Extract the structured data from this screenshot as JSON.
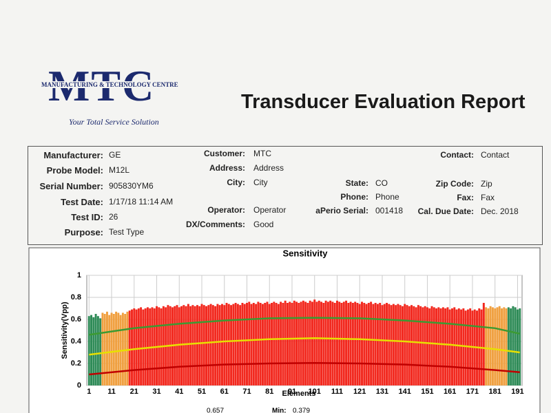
{
  "header": {
    "logo": "MTC",
    "logo_subtitle": "MANUFACTURING & TECHNOLOGY CENTRE",
    "tagline": "Your Total Service Solution",
    "title": "Transducer Evaluation Report"
  },
  "fields": {
    "col1": [
      {
        "label": "Manufacturer:",
        "value": "GE"
      },
      {
        "label": "Probe Model:",
        "value": "M12L"
      },
      {
        "label": "Serial Number:",
        "value": "905830YM6"
      },
      {
        "label": "Test Date:",
        "value": "1/17/18 11:14 AM"
      },
      {
        "label": "Test ID:",
        "value": "26"
      },
      {
        "label": "Purpose:",
        "value": "Test Type"
      }
    ],
    "col2": [
      {
        "label": "Customer:",
        "value": "MTC"
      },
      {
        "label": "Address:",
        "value": "Address"
      },
      {
        "label": "City:",
        "value": "City"
      },
      {
        "label": "Operator:",
        "value": "Operator"
      },
      {
        "label": "DX/Comments:",
        "value": "Good"
      }
    ],
    "col3": [
      {
        "label": "State:",
        "value": "CO"
      },
      {
        "label": "Phone:",
        "value": "Phone"
      },
      {
        "label": "aPerio Serial:",
        "value": "001418"
      }
    ],
    "col4": [
      {
        "label": "Contact:",
        "value": "Contact"
      },
      {
        "label": "Zip Code:",
        "value": "Zip"
      },
      {
        "label": "Fax:",
        "value": "Fax"
      },
      {
        "label": "Cal. Due Date:",
        "value": "Dec. 2018"
      }
    ]
  },
  "chart_data": {
    "type": "bar",
    "title": "Sensitivity",
    "xlabel": "Elements",
    "ylabel": "Sensitivity(Vpp)",
    "xlim": [
      0,
      193
    ],
    "xticks": [
      1,
      11,
      21,
      31,
      41,
      51,
      61,
      71,
      81,
      91,
      101,
      111,
      121,
      131,
      141,
      151,
      161,
      171,
      181,
      191
    ],
    "ylim": [
      0,
      1
    ],
    "yticks": [
      0,
      0.2,
      0.4,
      0.6,
      0.8,
      1
    ],
    "grid": true,
    "series": [
      {
        "color": "#2e8b57",
        "x": [
          1,
          2,
          3,
          4,
          5,
          6
        ],
        "values": [
          0.63,
          0.64,
          0.62,
          0.65,
          0.63,
          0.61
        ]
      },
      {
        "color": "#f0a040",
        "x": [
          7,
          8,
          9,
          10,
          11,
          12,
          13,
          14,
          15,
          16,
          17,
          18
        ],
        "values": [
          0.66,
          0.65,
          0.67,
          0.64,
          0.66,
          0.65,
          0.67,
          0.66,
          0.64,
          0.66,
          0.65,
          0.67
        ]
      },
      {
        "color": "#f2281e",
        "x": [
          19,
          20,
          21,
          22,
          23,
          24,
          25,
          26,
          27,
          28,
          29,
          30,
          31,
          32,
          33,
          34,
          35,
          36,
          37,
          38,
          39,
          40,
          41,
          42,
          43,
          44,
          45,
          46,
          47,
          48,
          49,
          50,
          51,
          52,
          53,
          54,
          55,
          56,
          57,
          58,
          59,
          60,
          61,
          62,
          63,
          64,
          65,
          66,
          67,
          68,
          69,
          70,
          71,
          72,
          73,
          74,
          75,
          76,
          77,
          78,
          79,
          80,
          81,
          82,
          83,
          84,
          85,
          86,
          87,
          88,
          89,
          90,
          91,
          92,
          93,
          94,
          95,
          96,
          97,
          98,
          99,
          100,
          101,
          102,
          103,
          104,
          105,
          106,
          107,
          108,
          109,
          110,
          111,
          112,
          113,
          114,
          115,
          116,
          117,
          118,
          119,
          120,
          121,
          122,
          123,
          124,
          125,
          126,
          127,
          128,
          129,
          130,
          131,
          132,
          133,
          134,
          135,
          136,
          137,
          138,
          139,
          140,
          141,
          142,
          143,
          144,
          145,
          146,
          147,
          148,
          149,
          150,
          151,
          152,
          153,
          154,
          155,
          156,
          157,
          158,
          159,
          160,
          161,
          162,
          163,
          164,
          165,
          166,
          167,
          168,
          169,
          170,
          171,
          172,
          173,
          174,
          175,
          176
        ],
        "values": [
          0.68,
          0.69,
          0.7,
          0.69,
          0.7,
          0.71,
          0.69,
          0.7,
          0.71,
          0.7,
          0.71,
          0.7,
          0.72,
          0.71,
          0.7,
          0.72,
          0.71,
          0.73,
          0.72,
          0.71,
          0.72,
          0.73,
          0.71,
          0.72,
          0.73,
          0.72,
          0.74,
          0.72,
          0.73,
          0.72,
          0.73,
          0.72,
          0.74,
          0.73,
          0.72,
          0.73,
          0.74,
          0.73,
          0.72,
          0.74,
          0.73,
          0.74,
          0.73,
          0.75,
          0.74,
          0.73,
          0.74,
          0.75,
          0.74,
          0.73,
          0.75,
          0.74,
          0.75,
          0.76,
          0.74,
          0.75,
          0.74,
          0.76,
          0.75,
          0.74,
          0.75,
          0.76,
          0.74,
          0.75,
          0.76,
          0.75,
          0.74,
          0.76,
          0.75,
          0.77,
          0.75,
          0.76,
          0.75,
          0.77,
          0.76,
          0.75,
          0.76,
          0.77,
          0.76,
          0.75,
          0.77,
          0.76,
          0.78,
          0.76,
          0.77,
          0.76,
          0.75,
          0.77,
          0.76,
          0.77,
          0.76,
          0.75,
          0.77,
          0.76,
          0.75,
          0.76,
          0.77,
          0.75,
          0.76,
          0.75,
          0.76,
          0.75,
          0.74,
          0.76,
          0.75,
          0.74,
          0.75,
          0.76,
          0.74,
          0.75,
          0.74,
          0.75,
          0.73,
          0.74,
          0.75,
          0.74,
          0.73,
          0.74,
          0.73,
          0.74,
          0.73,
          0.72,
          0.74,
          0.73,
          0.72,
          0.73,
          0.72,
          0.71,
          0.73,
          0.72,
          0.71,
          0.72,
          0.71,
          0.7,
          0.72,
          0.71,
          0.7,
          0.71,
          0.7,
          0.71,
          0.7,
          0.71,
          0.69,
          0.7,
          0.71,
          0.69,
          0.7,
          0.69,
          0.7,
          0.68,
          0.69,
          0.7,
          0.68,
          0.69,
          0.68,
          0.7,
          0.69,
          0.75
        ]
      },
      {
        "color": "#f0a040",
        "x": [
          177,
          178,
          179,
          180,
          181,
          182,
          183,
          184,
          185,
          186
        ],
        "values": [
          0.71,
          0.7,
          0.72,
          0.71,
          0.7,
          0.71,
          0.72,
          0.7,
          0.71,
          0.7
        ]
      },
      {
        "color": "#2e8b57",
        "x": [
          187,
          188,
          189,
          190,
          191,
          192
        ],
        "values": [
          0.71,
          0.7,
          0.72,
          0.71,
          0.69,
          0.7
        ]
      }
    ],
    "lines": [
      {
        "color": "#3c9a32",
        "x": [
          1,
          21,
          41,
          61,
          81,
          101,
          121,
          141,
          161,
          181,
          192
        ],
        "values": [
          0.46,
          0.52,
          0.56,
          0.59,
          0.61,
          0.615,
          0.61,
          0.59,
          0.56,
          0.52,
          0.47
        ]
      },
      {
        "color": "#e8e000",
        "x": [
          1,
          21,
          41,
          61,
          81,
          101,
          121,
          141,
          161,
          181,
          192
        ],
        "values": [
          0.28,
          0.33,
          0.37,
          0.4,
          0.42,
          0.43,
          0.42,
          0.4,
          0.37,
          0.33,
          0.3
        ]
      },
      {
        "color": "#c00000",
        "x": [
          1,
          21,
          41,
          61,
          81,
          101,
          121,
          141,
          161,
          181,
          192
        ],
        "values": [
          0.1,
          0.14,
          0.17,
          0.19,
          0.2,
          0.205,
          0.2,
          0.19,
          0.17,
          0.14,
          0.12
        ]
      }
    ]
  },
  "footer": {
    "stat_1": "0.657",
    "min_label": "Min:",
    "min_value": "0.379"
  }
}
